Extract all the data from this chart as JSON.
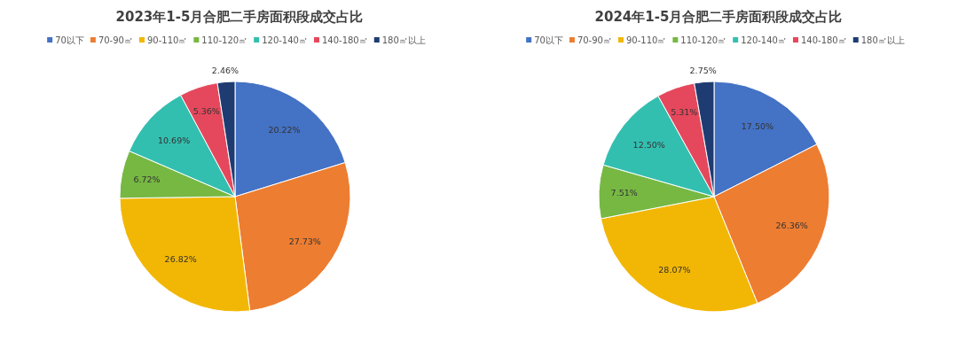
{
  "chart_data": [
    {
      "type": "pie",
      "title": "2023年1-5月合肥二手房面积段成交占比",
      "categories": [
        "70以下",
        "70-90㎡",
        "90-110㎡",
        "110-120㎡",
        "120-140㎡",
        "140-180㎡",
        "180㎡以上"
      ],
      "values": [
        20.22,
        27.73,
        26.82,
        6.72,
        10.69,
        5.36,
        2.46
      ],
      "colors": [
        "#4472c4",
        "#ed7d31",
        "#f2b705",
        "#77b843",
        "#33bfb0",
        "#e5485c",
        "#1f3c72"
      ],
      "value_labels": [
        "20.22%",
        "27.73%",
        "26.82%",
        "6.72%",
        "10.69%",
        "5.36%",
        "2.46%"
      ],
      "legend": "top"
    },
    {
      "type": "pie",
      "title": "2024年1-5月合肥二手房面积段成交占比",
      "categories": [
        "70以下",
        "70-90㎡",
        "90-110㎡",
        "110-120㎡",
        "120-140㎡",
        "140-180㎡",
        "180㎡以上"
      ],
      "values": [
        17.5,
        26.36,
        28.07,
        7.51,
        12.5,
        5.31,
        2.75
      ],
      "colors": [
        "#4472c4",
        "#ed7d31",
        "#f2b705",
        "#77b843",
        "#33bfb0",
        "#e5485c",
        "#1f3c72"
      ],
      "value_labels": [
        "17.50%",
        "26.36%",
        "28.07%",
        "7.51%",
        "12.50%",
        "5.31%",
        "2.75%"
      ],
      "legend": "top"
    }
  ]
}
